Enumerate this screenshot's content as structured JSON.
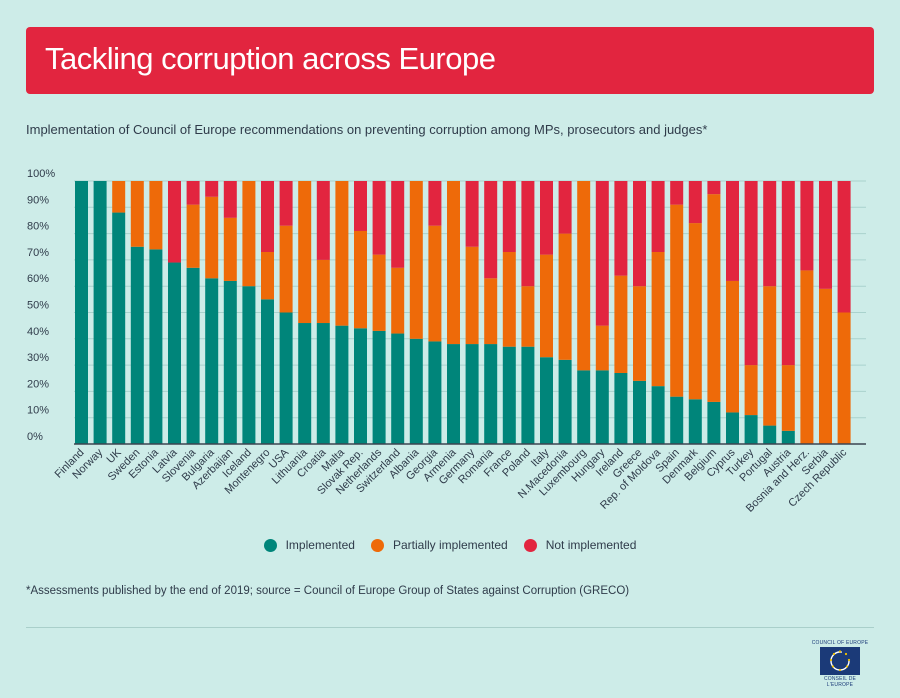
{
  "title": "Tackling corruption across Europe",
  "subtitle": "Implementation of Council of Europe recommendations on preventing corruption among MPs, prosecutors and judges*",
  "footnote": "*Assessments published by the end of 2019; source = Council of Europe Group of States against Corruption (GRECO)",
  "logo": {
    "text_top": "COUNCIL OF EUROPE",
    "text_bottom": "CONSEIL DE L'EUROPE"
  },
  "colors": {
    "implemented": "#00857a",
    "partial": "#ee6a09",
    "not": "#e2253f",
    "banner": "#e2253f"
  },
  "legend": [
    {
      "label": "Implemented",
      "color": "#00857a"
    },
    {
      "label": "Partially implemented",
      "color": "#ee6a09"
    },
    {
      "label": "Not implemented",
      "color": "#e2253f"
    }
  ],
  "chart_data": {
    "type": "bar",
    "stacked": true,
    "ylim": [
      0,
      100
    ],
    "yticks": [
      "0%",
      "10%",
      "20%",
      "30%",
      "40%",
      "50%",
      "60%",
      "70%",
      "80%",
      "90%",
      "100%"
    ],
    "categories": [
      "Finland",
      "Norway",
      "UK",
      "Sweden",
      "Estonia",
      "Latvia",
      "Slovenia",
      "Bulgaria",
      "Azerbaijan",
      "Iceland",
      "Montenegro",
      "USA",
      "Lithuania",
      "Croatia",
      "Malta",
      "Slovak Rep.",
      "Netherlands",
      "Switzerland",
      "Albania",
      "Georgia",
      "Armenia",
      "Germany",
      "Romania",
      "France",
      "Poland",
      "Italy",
      "N.Macedonia",
      "Luxembourg",
      "Hungary",
      "Ireland",
      "Greece",
      "Rep. of Moldova",
      "Spain",
      "Denmark",
      "Belgium",
      "Cyprus",
      "Turkey",
      "Portugal",
      "Austria",
      "Bosnia and Herz.",
      "Serbia",
      "Czech Republic"
    ],
    "series": [
      {
        "name": "Implemented",
        "values": [
          100,
          100,
          88,
          75,
          74,
          69,
          67,
          63,
          62,
          60,
          55,
          50,
          46,
          46,
          45,
          44,
          43,
          42,
          40,
          39,
          38,
          38,
          38,
          37,
          37,
          33,
          32,
          28,
          28,
          27,
          24,
          22,
          18,
          17,
          16,
          12,
          11,
          7,
          5,
          0,
          0,
          0
        ]
      },
      {
        "name": "Partially implemented",
        "values": [
          0,
          0,
          12,
          25,
          26,
          0,
          24,
          31,
          24,
          40,
          18,
          33,
          54,
          24,
          55,
          37,
          29,
          25,
          60,
          44,
          62,
          37,
          25,
          36,
          23,
          39,
          48,
          72,
          17,
          37,
          36,
          51,
          73,
          67,
          79,
          50,
          19,
          53,
          25,
          66,
          59,
          50
        ]
      },
      {
        "name": "Not implemented",
        "values": [
          0,
          0,
          0,
          0,
          0,
          31,
          9,
          6,
          14,
          0,
          27,
          17,
          0,
          30,
          0,
          19,
          28,
          33,
          0,
          17,
          0,
          25,
          37,
          27,
          40,
          28,
          20,
          0,
          55,
          36,
          40,
          27,
          9,
          16,
          5,
          38,
          70,
          40,
          70,
          34,
          41,
          50
        ]
      }
    ]
  }
}
